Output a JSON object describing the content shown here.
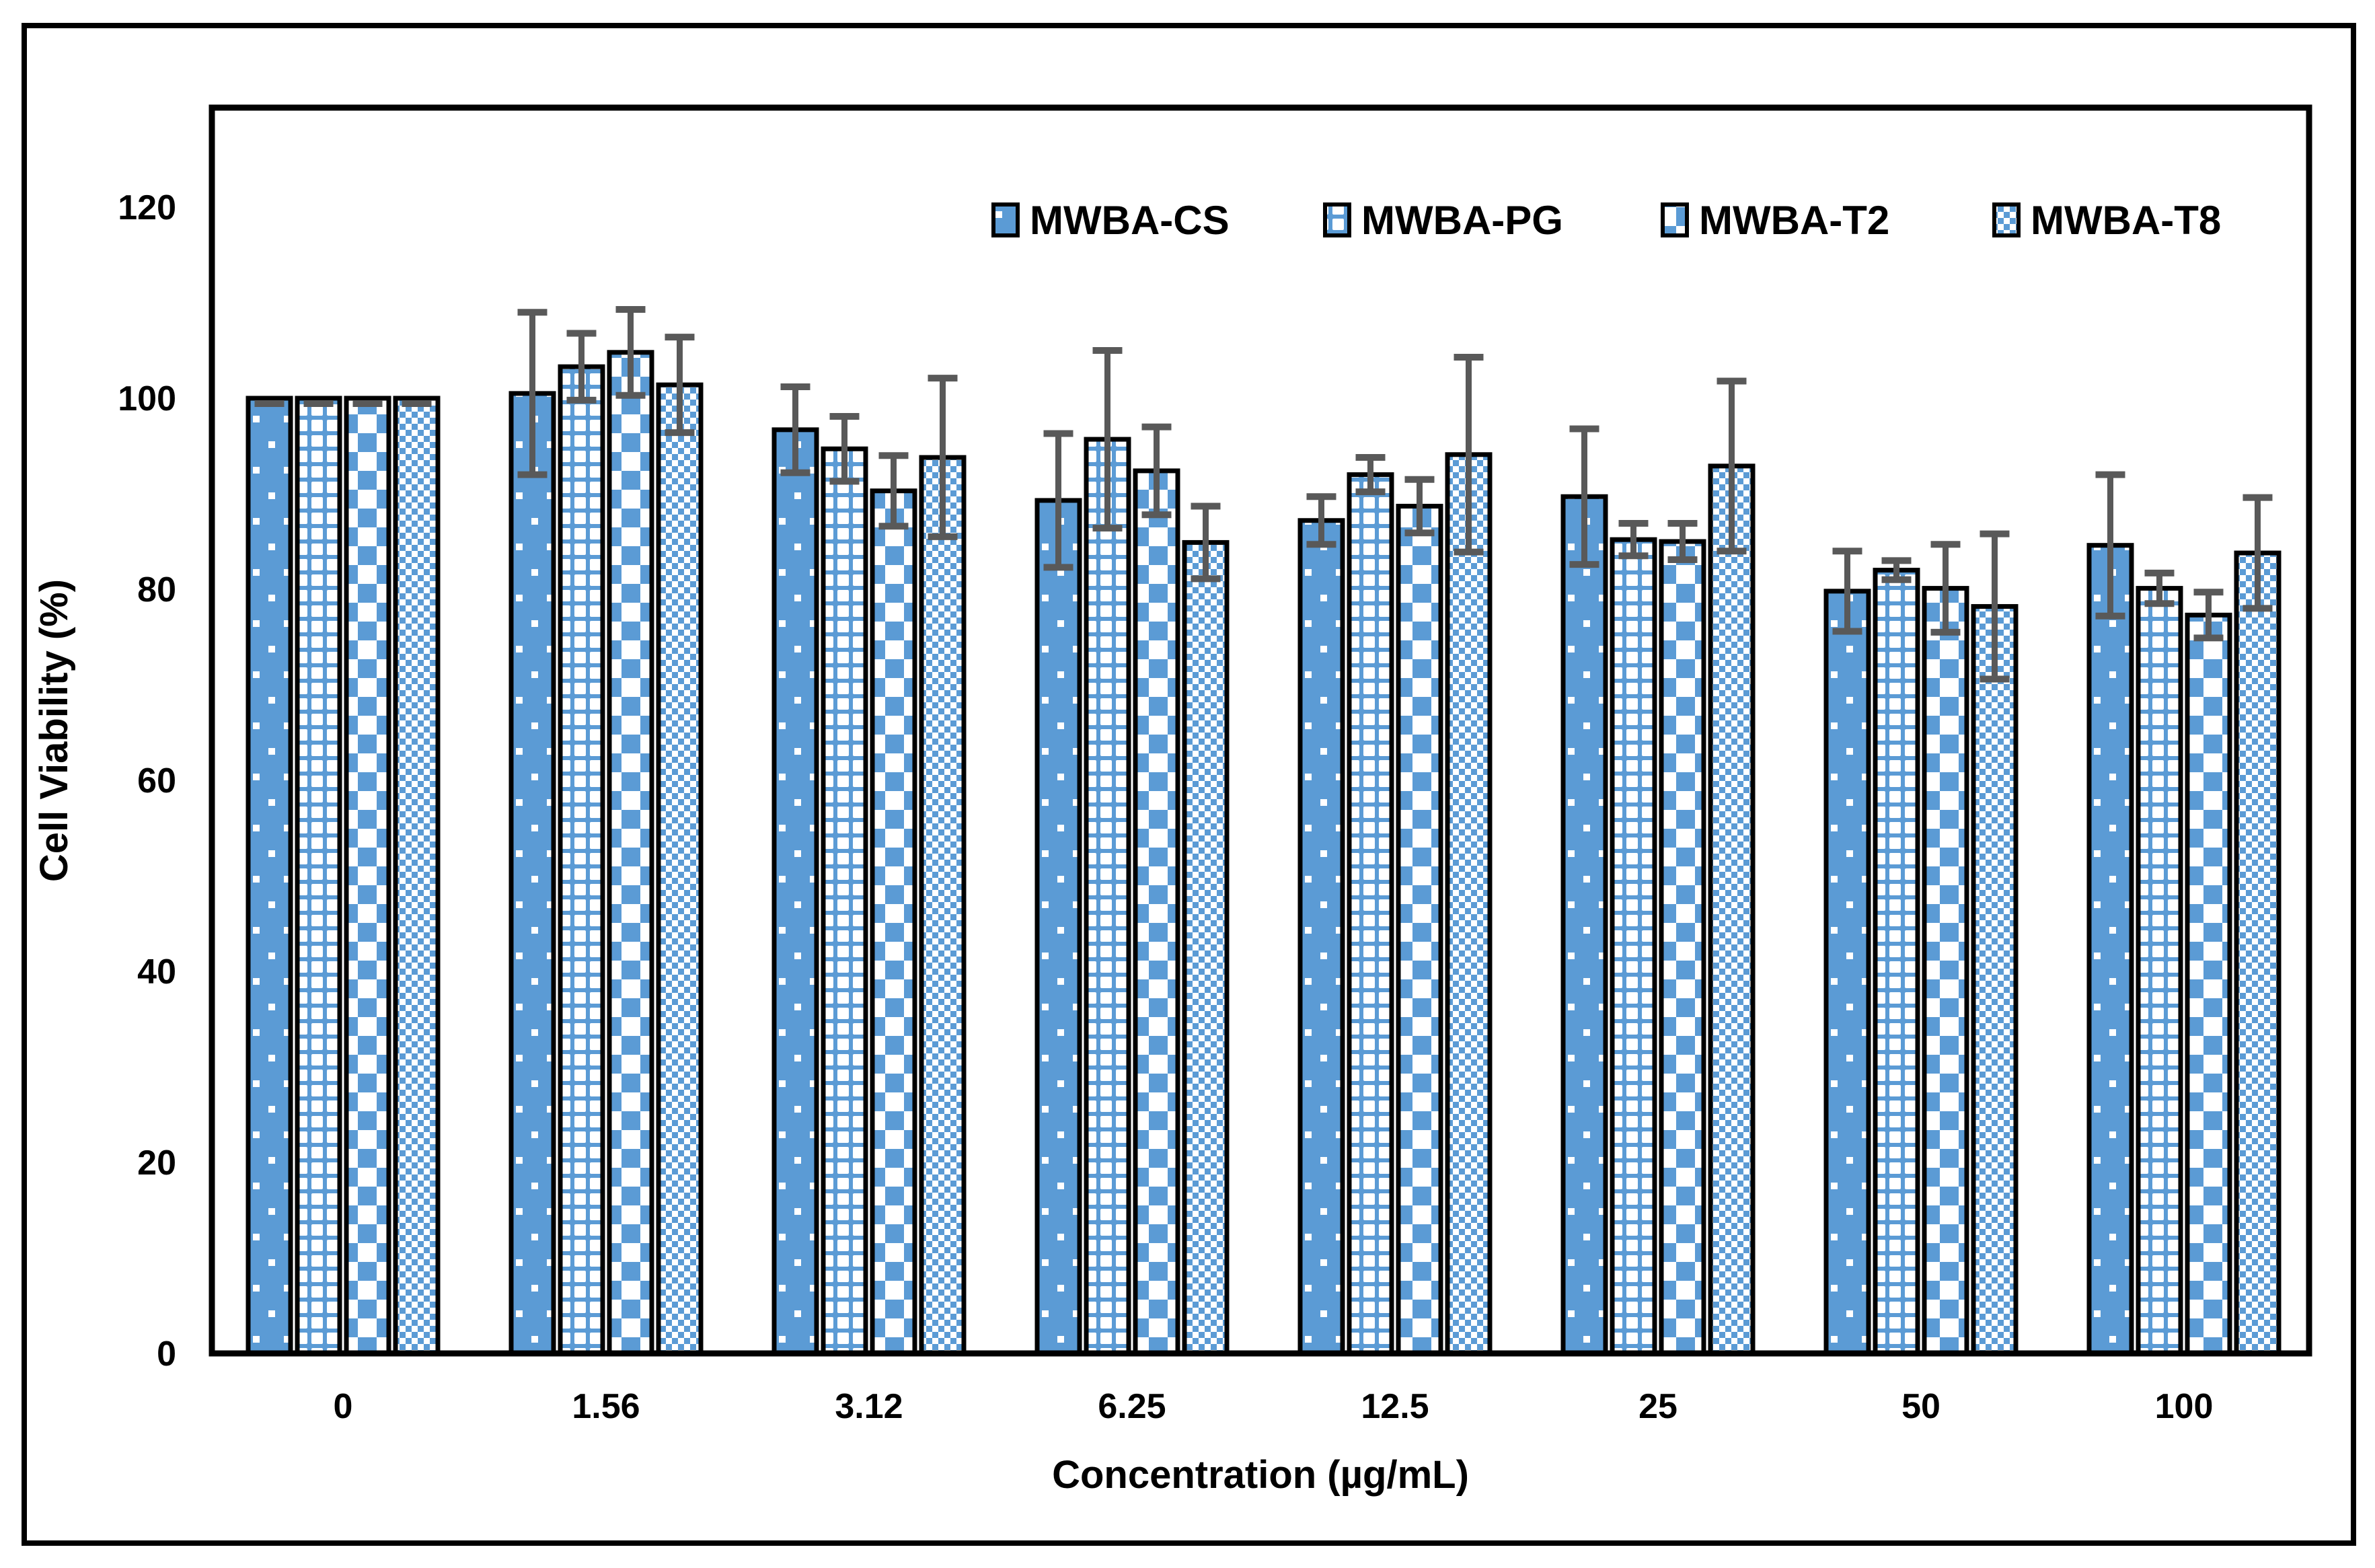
{
  "figure": {
    "background": "#ffffff",
    "outer_border_color": "#000000",
    "plot_border_color": "#000000"
  },
  "chart_data": {
    "type": "bar",
    "title": "",
    "xlabel": "Concentration (µg/mL)",
    "ylabel": "Cell Viability (%)",
    "categories": [
      "0",
      "1.56",
      "3.12",
      "6.25",
      "12.5",
      "25",
      "50",
      "100"
    ],
    "y_ticks": [
      0,
      20,
      40,
      60,
      80,
      100,
      120
    ],
    "ylim": [
      0,
      130
    ],
    "grid": false,
    "legend_position": "top-inside-right",
    "error_bars": "symmetric, dark gray caps",
    "colors": {
      "bar_fill": "#5B9BD5",
      "bar_pattern_contrast": "#FFFFFF",
      "bar_border": "#000000",
      "error_bar": "#595959"
    },
    "series": [
      {
        "name": "MWBA-CS",
        "pattern": "dots",
        "values": [
          100,
          100.5,
          96.7,
          89.3,
          87.2,
          89.7,
          79.8,
          84.6
        ],
        "errors": [
          0,
          8.5,
          4.5,
          7.0,
          2.5,
          7.1,
          4.2,
          7.4
        ]
      },
      {
        "name": "MWBA-PG",
        "pattern": "grid",
        "values": [
          100,
          103.3,
          94.7,
          95.7,
          92.0,
          85.2,
          82.0,
          80.1
        ],
        "errors": [
          0,
          3.5,
          3.4,
          9.3,
          1.8,
          1.7,
          1.0,
          1.6
        ]
      },
      {
        "name": "MWBA-T2",
        "pattern": "checker-large",
        "values": [
          100,
          104.8,
          90.3,
          92.4,
          88.7,
          85.0,
          80.1,
          77.3
        ],
        "errors": [
          0,
          4.5,
          3.7,
          4.6,
          2.8,
          1.9,
          4.6,
          2.4
        ]
      },
      {
        "name": "MWBA-T8",
        "pattern": "checker-small",
        "values": [
          100,
          101.4,
          93.8,
          84.9,
          94.1,
          92.9,
          78.2,
          83.8
        ],
        "errors": [
          0,
          5.0,
          8.3,
          3.8,
          10.2,
          8.9,
          7.6,
          5.8
        ]
      }
    ]
  }
}
